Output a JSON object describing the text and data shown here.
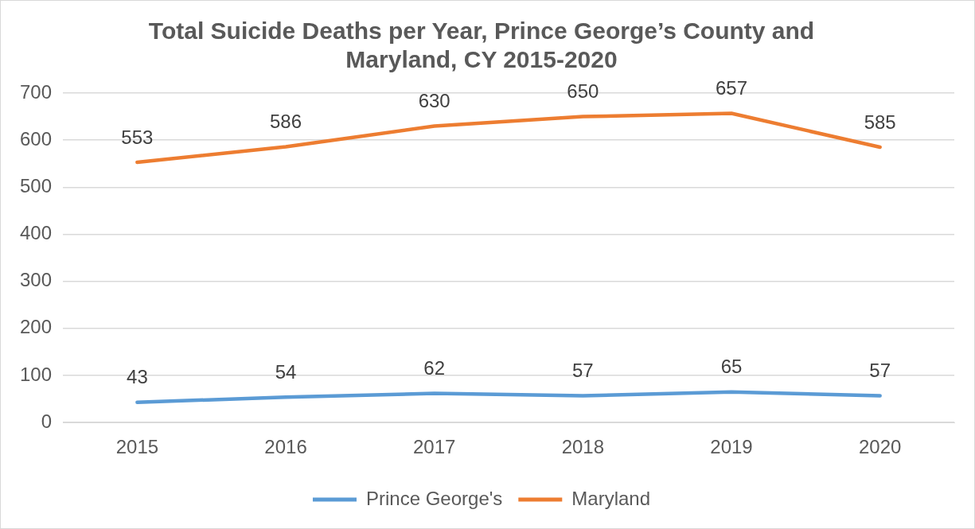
{
  "chart_data": {
    "type": "line",
    "title": "Total Suicide Deaths per Year, Prince George’s County and Maryland, CY 2015-2020",
    "categories": [
      "2015",
      "2016",
      "2017",
      "2018",
      "2019",
      "2020"
    ],
    "series": [
      {
        "name": "Prince George's",
        "color": "#5b9bd5",
        "values": [
          43,
          54,
          62,
          57,
          65,
          57
        ]
      },
      {
        "name": "Maryland",
        "color": "#ed7d31",
        "values": [
          553,
          586,
          630,
          650,
          657,
          585
        ]
      }
    ],
    "ylim": [
      0,
      700
    ],
    "yticks": [
      0,
      100,
      200,
      300,
      400,
      500,
      600,
      700
    ],
    "grid": "y",
    "legend": "bottom",
    "data_labels": true,
    "marker": "none",
    "line_style": "solid"
  }
}
